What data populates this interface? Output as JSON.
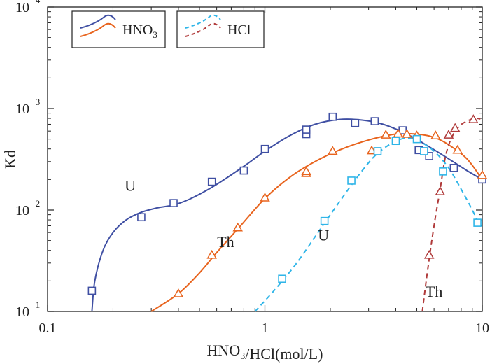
{
  "chart_data": {
    "type": "scatter",
    "xscale": "log",
    "yscale": "log",
    "xlim": [
      0.1,
      10
    ],
    "ylim": [
      10,
      10000
    ],
    "xlabel": "HNO3/HCl(mol/L)",
    "ylabel": "Kd",
    "x_ticks": [
      {
        "value": 0.1,
        "label": "0.1"
      },
      {
        "value": 1,
        "label": "1"
      },
      {
        "value": 10,
        "label": "10"
      }
    ],
    "y_ticks": [
      {
        "value": 10,
        "base": "10",
        "exp": "1"
      },
      {
        "value": 100,
        "base": "10",
        "exp": "2"
      },
      {
        "value": 1000,
        "base": "10",
        "exp": "3"
      },
      {
        "value": 10000,
        "base": "10",
        "exp": "4"
      }
    ],
    "legend": {
      "position": "top-left",
      "entries": [
        {
          "label": "HNO3",
          "style": "solid"
        },
        {
          "label": "HCl",
          "style": "dashed"
        }
      ]
    },
    "series": [
      {
        "name": "U (HNO3)",
        "acid": "HNO3",
        "element": "U",
        "marker": "square",
        "line_style": "solid",
        "color": "#3F4FA3",
        "points": [
          [
            0.16,
            16
          ],
          [
            0.27,
            85
          ],
          [
            0.38,
            117
          ],
          [
            0.57,
            190
          ],
          [
            0.8,
            245
          ],
          [
            1.0,
            400
          ],
          [
            1.55,
            560
          ],
          [
            1.55,
            620
          ],
          [
            2.05,
            830
          ],
          [
            2.6,
            720
          ],
          [
            3.2,
            750
          ],
          [
            4.3,
            610
          ],
          [
            5.1,
            390
          ],
          [
            5.7,
            340
          ],
          [
            7.4,
            260
          ],
          [
            10,
            200
          ]
        ],
        "curve": [
          [
            0.16,
            10
          ],
          [
            0.165,
            20
          ],
          [
            0.18,
            40
          ],
          [
            0.2,
            60
          ],
          [
            0.23,
            80
          ],
          [
            0.27,
            95
          ],
          [
            0.32,
            105
          ],
          [
            0.38,
            112
          ],
          [
            0.45,
            128
          ],
          [
            0.55,
            160
          ],
          [
            0.65,
            200
          ],
          [
            0.8,
            270
          ],
          [
            1.0,
            380
          ],
          [
            1.3,
            540
          ],
          [
            1.7,
            700
          ],
          [
            2.2,
            780
          ],
          [
            2.8,
            770
          ],
          [
            3.5,
            700
          ],
          [
            4.5,
            560
          ],
          [
            5.5,
            440
          ],
          [
            7,
            320
          ],
          [
            8.5,
            245
          ],
          [
            10,
            200
          ]
        ]
      },
      {
        "name": "Th (HNO3)",
        "acid": "HNO3",
        "element": "Th",
        "marker": "triangle",
        "line_style": "solid",
        "color": "#E8641E",
        "points": [
          [
            0.4,
            15
          ],
          [
            0.57,
            36
          ],
          [
            0.75,
            67
          ],
          [
            1.0,
            132
          ],
          [
            1.55,
            230
          ],
          [
            1.55,
            240
          ],
          [
            2.05,
            380
          ],
          [
            3.1,
            385
          ],
          [
            3.6,
            550
          ],
          [
            4.1,
            565
          ],
          [
            4.5,
            560
          ],
          [
            5.0,
            540
          ],
          [
            6.1,
            540
          ],
          [
            7.7,
            390
          ],
          [
            10,
            220
          ]
        ],
        "curve": [
          [
            0.3,
            10
          ],
          [
            0.4,
            15
          ],
          [
            0.5,
            24
          ],
          [
            0.6,
            38
          ],
          [
            0.75,
            65
          ],
          [
            1.0,
            130
          ],
          [
            1.3,
            210
          ],
          [
            1.7,
            300
          ],
          [
            2.2,
            390
          ],
          [
            3.0,
            490
          ],
          [
            4.0,
            560
          ],
          [
            5.0,
            560
          ],
          [
            6.0,
            520
          ],
          [
            7.0,
            440
          ],
          [
            8.5,
            320
          ],
          [
            10,
            200
          ]
        ]
      },
      {
        "name": "U (HCl)",
        "acid": "HCl",
        "element": "U",
        "marker": "square",
        "line_style": "dashed",
        "color": "#2FB5E8",
        "points": [
          [
            1.2,
            21
          ],
          [
            1.88,
            78
          ],
          [
            2.5,
            195
          ],
          [
            3.3,
            380
          ],
          [
            4.0,
            480
          ],
          [
            5.0,
            500
          ],
          [
            5.4,
            380
          ],
          [
            6.6,
            240
          ],
          [
            9.5,
            75
          ]
        ],
        "curve": [
          [
            0.9,
            10
          ],
          [
            1.1,
            16
          ],
          [
            1.4,
            30
          ],
          [
            1.8,
            65
          ],
          [
            2.2,
            120
          ],
          [
            2.7,
            220
          ],
          [
            3.2,
            340
          ],
          [
            3.8,
            450
          ],
          [
            4.4,
            510
          ],
          [
            5.0,
            490
          ],
          [
            6.0,
            380
          ],
          [
            7.0,
            260
          ],
          [
            8.0,
            160
          ],
          [
            9.0,
            100
          ],
          [
            9.6,
            75
          ]
        ]
      },
      {
        "name": "Th (HCl)",
        "acid": "HCl",
        "element": "Th",
        "marker": "triangle",
        "line_style": "dashed",
        "color": "#B03A3A",
        "points": [
          [
            5.7,
            36
          ],
          [
            6.4,
            152
          ],
          [
            7.0,
            550
          ],
          [
            7.5,
            640
          ],
          [
            9.1,
            780
          ]
        ],
        "curve": [
          [
            5.3,
            10
          ],
          [
            5.6,
            25
          ],
          [
            6.0,
            70
          ],
          [
            6.4,
            160
          ],
          [
            6.8,
            350
          ],
          [
            7.3,
            540
          ],
          [
            7.9,
            680
          ],
          [
            8.6,
            760
          ],
          [
            9.3,
            800
          ],
          [
            9.8,
            790
          ]
        ]
      }
    ],
    "annotations": [
      {
        "text": "U",
        "x": 0.24,
        "y": 155
      },
      {
        "text": "Th",
        "x": 0.66,
        "y": 43
      },
      {
        "text": "U",
        "x": 1.86,
        "y": 50
      },
      {
        "text": "Th",
        "x": 6.0,
        "y": 14
      }
    ]
  }
}
